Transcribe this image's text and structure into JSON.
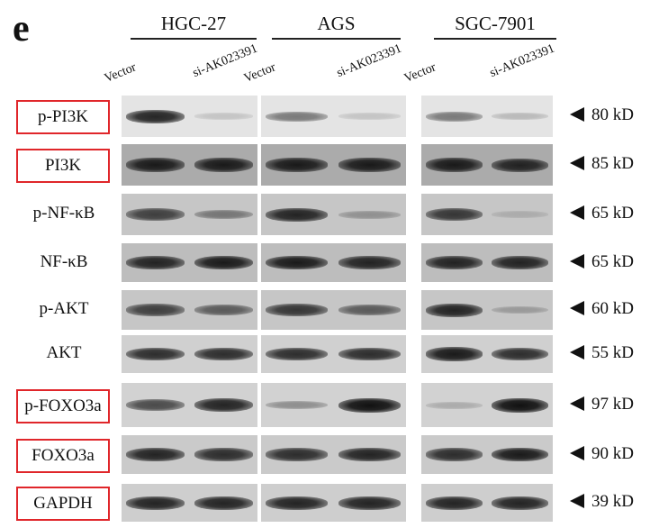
{
  "panel_letter": "e",
  "cell_lines": [
    {
      "name": "HGC-27",
      "lanes": [
        "Vector",
        "si-AK023391"
      ]
    },
    {
      "name": "AGS",
      "lanes": [
        "Vector",
        "si-AK023391"
      ]
    },
    {
      "name": "SGC-7901",
      "lanes": [
        "Vector",
        "si-AK023391"
      ]
    }
  ],
  "rows": [
    {
      "label": "p-PI3K",
      "boxed": true,
      "kd": "80 kD",
      "background": "#e4e4e4",
      "band_intensity": [
        0.9,
        0.15,
        0.5,
        0.15,
        0.5,
        0.2
      ]
    },
    {
      "label": "PI3K",
      "boxed": true,
      "kd": "85 kD",
      "background": "#ababab",
      "band_intensity": [
        0.95,
        0.95,
        0.95,
        0.95,
        0.95,
        0.9
      ]
    },
    {
      "label": "p-NF-κB",
      "boxed": false,
      "kd": "65 kD",
      "background": "#c6c6c6",
      "band_intensity": [
        0.75,
        0.45,
        0.9,
        0.3,
        0.8,
        0.15
      ]
    },
    {
      "label": "NF-κB",
      "boxed": false,
      "kd": "65 kD",
      "background": "#bdbdbd",
      "band_intensity": [
        0.9,
        0.95,
        0.95,
        0.9,
        0.9,
        0.9
      ]
    },
    {
      "label": "p-AKT",
      "boxed": false,
      "kd": "60 kD",
      "background": "#c6c6c6",
      "band_intensity": [
        0.75,
        0.6,
        0.8,
        0.6,
        0.9,
        0.25
      ]
    },
    {
      "label": "AKT",
      "boxed": false,
      "kd": "55 kD",
      "background": "#d0d0d0",
      "band_intensity": [
        0.85,
        0.85,
        0.85,
        0.85,
        0.95,
        0.85
      ]
    },
    {
      "label": "p-FOXO3a",
      "boxed": true,
      "kd": "97 kD",
      "background": "#d2d2d2",
      "band_intensity": [
        0.7,
        0.9,
        0.35,
        1.0,
        0.2,
        1.0
      ]
    },
    {
      "label": "FOXO3a",
      "boxed": true,
      "kd": "90 kD",
      "background": "#cacaca",
      "band_intensity": [
        0.9,
        0.85,
        0.85,
        0.9,
        0.85,
        0.95
      ]
    },
    {
      "label": "GAPDH",
      "boxed": true,
      "kd": "39 kD",
      "background": "#cecece",
      "band_intensity": [
        0.9,
        0.9,
        0.9,
        0.9,
        0.9,
        0.9
      ]
    }
  ]
}
